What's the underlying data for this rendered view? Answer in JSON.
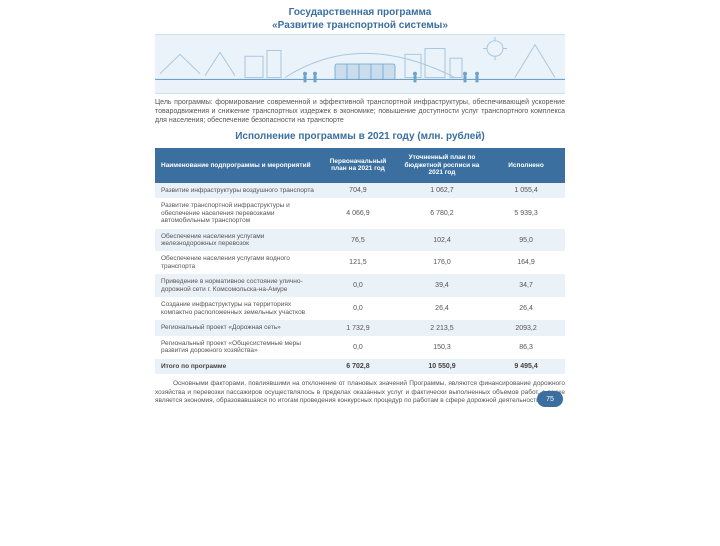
{
  "header": {
    "line1": "Государственная программа",
    "line2": "«Развитие транспортной системы»"
  },
  "banner": {
    "sky_color": "#eaf3fa",
    "line_color": "#a8c6df",
    "accent_color": "#6fa2c9"
  },
  "goal_text": "Цель программы: формирование современной и эффективной транспортной инфраструктуры, обеспечивающей ускорение товародвижения и снижение транспортных издержек в экономике; повышение доступности услуг транспортного комплекса для населения; обеспечение безопасности на транспорте",
  "exec_title": "Исполнение программы в 2021 году (млн. рублей)",
  "table": {
    "header_bg": "#3b6fa0",
    "row_even_bg": "#eaf1f7",
    "row_odd_bg": "#ffffff",
    "columns": [
      "Наименование подпрограммы и мероприятий",
      "Первоначальный план на 2021 год",
      "Уточненный план по бюджетной росписи на 2021 год",
      "Исполнено"
    ],
    "rows": [
      {
        "name": "Развитие инфраструктуры воздушного транспорта",
        "v1": "704,9",
        "v2": "1 062,7",
        "v3": "1 055,4"
      },
      {
        "name": "Развитие транспортной инфраструктуры и обеспечение населения перевозками автомобильным транспортом",
        "v1": "4 066,9",
        "v2": "6 780,2",
        "v3": "5 939,3"
      },
      {
        "name": "Обеспечение населения услугами железнодорожных перевозок",
        "v1": "76,5",
        "v2": "102,4",
        "v3": "95,0"
      },
      {
        "name": "Обеспечение населения услугами водного транспорта",
        "v1": "121,5",
        "v2": "176,0",
        "v3": "164,9"
      },
      {
        "name": "Приведение в нормативное состояние улично-дорожной сети г. Комсомольска-на-Амуре",
        "v1": "0,0",
        "v2": "39,4",
        "v3": "34,7"
      },
      {
        "name": "Создание инфраструктуры на территориях компактно расположенных земельных участков",
        "v1": "0,0",
        "v2": "26,4",
        "v3": "26,4"
      },
      {
        "name": "Региональный проект «Дорожная сеть»",
        "v1": "1 732,9",
        "v2": "2 213,5",
        "v3": "2093,2"
      },
      {
        "name": "Региональный проект «Общесистемные меры развития дорожного хозяйства»",
        "v1": "0,0",
        "v2": "150,3",
        "v3": "86,3"
      }
    ],
    "total": {
      "name": "Итого по программе",
      "v1": "6 702,8",
      "v2": "10 550,9",
      "v3": "9 495,4"
    }
  },
  "footnote_text": "Основными факторами, повлиявшими на отклонение от плановых значений Программы, являются финансирование дорожного хозяйства и перевозки пассажиров осуществлялось в пределах оказанных услуг и фактически выполненных объемов работ, а также является экономия, образовавшаяся по итогам проведения конкурсных процедур по работам в сфере дорожной деятельности",
  "page_number": "75",
  "colors": {
    "heading": "#3b6fa0",
    "body_text": "#555555"
  }
}
